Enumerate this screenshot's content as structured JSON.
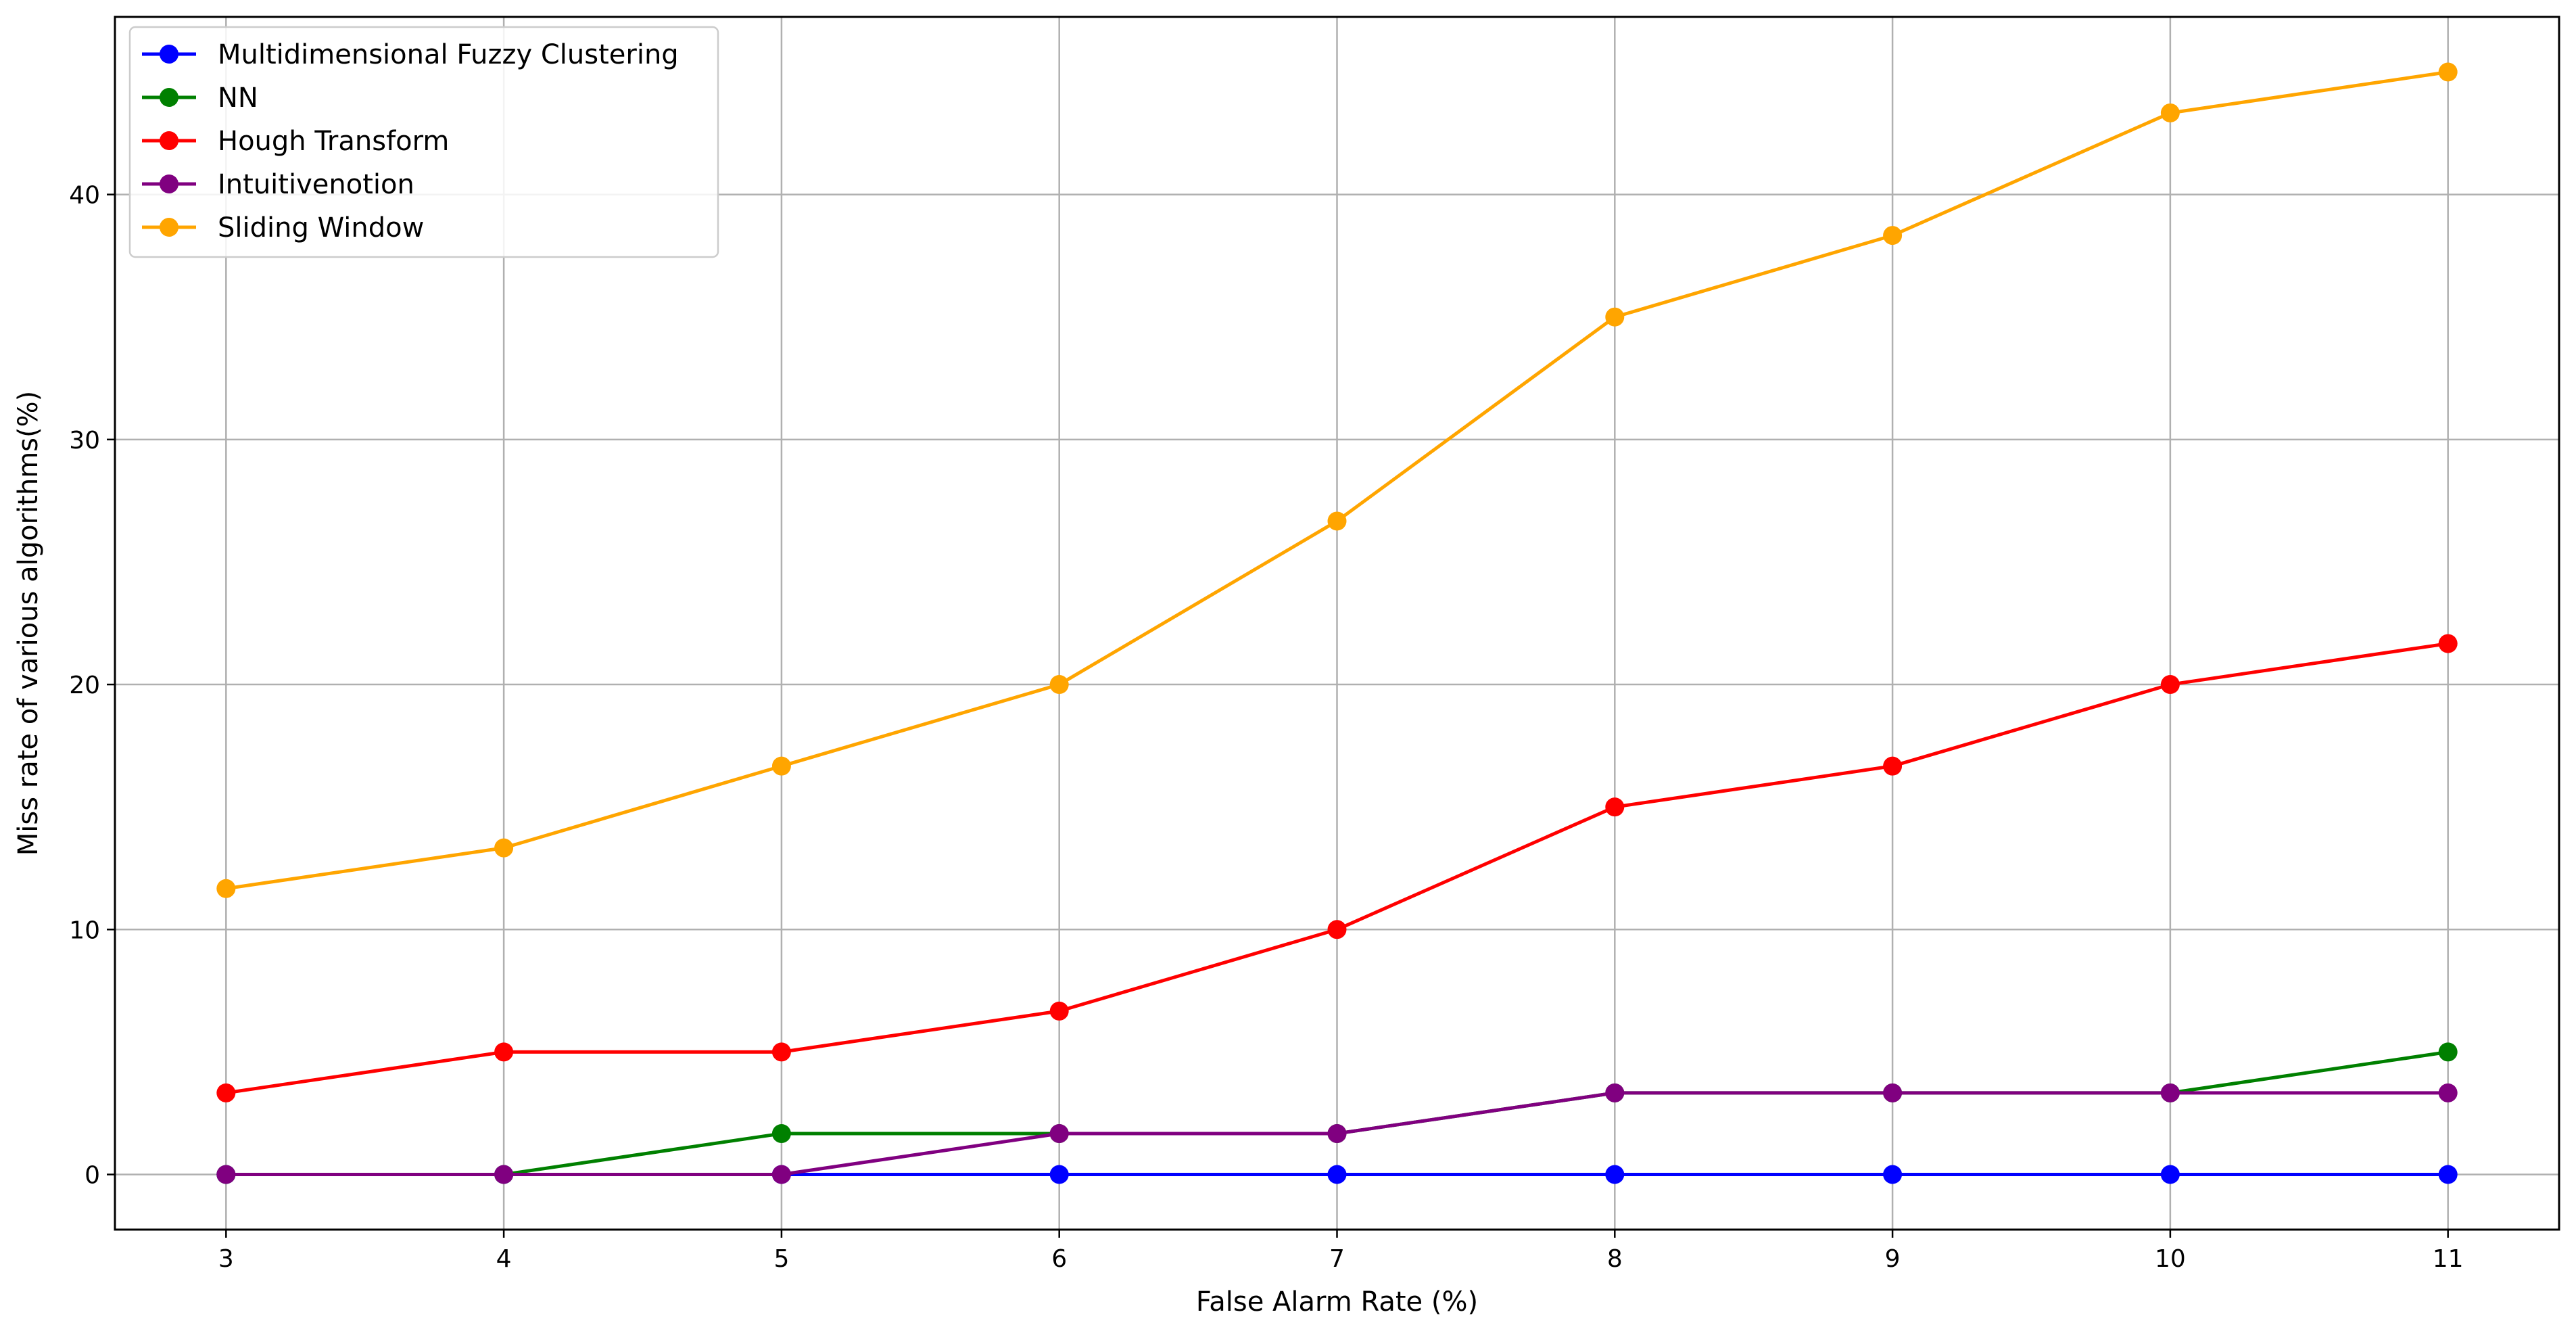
{
  "chart_data": {
    "type": "line",
    "title": "",
    "xlabel": "False Alarm Rate (%)",
    "ylabel": "Miss rate of various algorithms(%)",
    "x": [
      3,
      4,
      5,
      6,
      7,
      8,
      9,
      10,
      11
    ],
    "xlim": [
      2.6,
      11.4
    ],
    "ylim": [
      -2.25,
      47.25
    ],
    "xticks": [
      "3",
      "4",
      "5",
      "6",
      "7",
      "8",
      "9",
      "10",
      "11"
    ],
    "yticks": [
      0,
      10,
      20,
      30,
      40
    ],
    "grid": true,
    "legend_position": "top-left",
    "series": [
      {
        "name": "Multidimensional Fuzzy Clustering",
        "color": "#0000ff",
        "values": [
          0,
          0,
          0,
          0,
          0,
          0,
          0,
          0,
          0
        ]
      },
      {
        "name": "NN",
        "color": "#008000",
        "values": [
          0,
          0,
          1.67,
          1.67,
          1.67,
          3.33,
          3.33,
          3.33,
          5.0
        ]
      },
      {
        "name": "Hough Transform",
        "color": "#ff0000",
        "values": [
          3.33,
          5.0,
          5.0,
          6.67,
          10.0,
          15.0,
          16.67,
          20.0,
          21.67
        ]
      },
      {
        "name": "Intuitivenotion",
        "color": "#800080",
        "values": [
          0,
          0,
          0,
          1.67,
          1.67,
          3.33,
          3.33,
          3.33,
          3.33
        ]
      },
      {
        "name": "Sliding Window",
        "color": "#ffa500",
        "values": [
          11.67,
          13.33,
          16.67,
          20.0,
          26.67,
          35.0,
          38.33,
          43.33,
          45.0
        ]
      }
    ]
  }
}
